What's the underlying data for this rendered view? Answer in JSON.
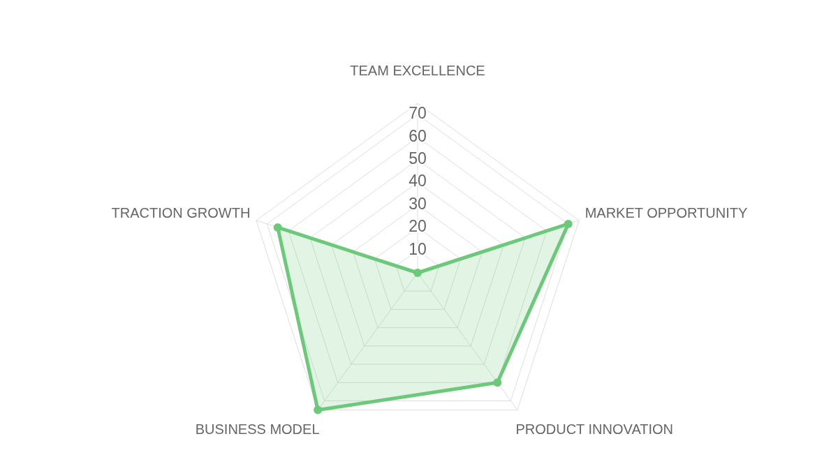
{
  "chart_data": {
    "type": "radar",
    "categories": [
      "TEAM EXCELLENCE",
      "MARKET OPPORTUNITY",
      "PRODUCT INNOVATION",
      "BUSINESS MODEL",
      "TRACTION GROWTH"
    ],
    "series": [
      {
        "color": "#6cc97a",
        "values": [
          0,
          70,
          60,
          75,
          65
        ]
      }
    ],
    "ylim": [
      0,
      75
    ],
    "yticks": [
      10,
      20,
      30,
      40,
      50,
      60,
      70
    ],
    "grid": true,
    "marker": "circle"
  }
}
